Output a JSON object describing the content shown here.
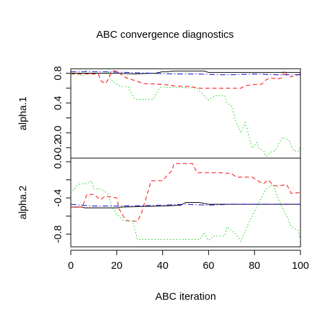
{
  "chart_data": {
    "type": "line",
    "title": "ABC convergence diagnostics",
    "xlabel": "ABC iteration",
    "xlim": [
      0,
      100
    ],
    "x_ticks": [
      0,
      20,
      40,
      60,
      80,
      100
    ],
    "x_tick_labels": [
      "0",
      "20",
      "40",
      "60",
      "80",
      "100"
    ],
    "grid": false,
    "colors": {
      "run1": "#000000",
      "run2": "#ff0000",
      "run3": "#00cd00",
      "run4": "#0000cd"
    },
    "panels": [
      {
        "ylabel": "alpha.1",
        "ylim": [
          -0.34,
          0.86
        ],
        "y_ticks": [
          -0.2,
          0.0,
          0.2,
          0.4,
          0.6,
          0.8
        ],
        "y_tick_labels": [
          "-0.2",
          "0.0",
          "0.2",
          "0.4",
          "0.6",
          "0.8"
        ],
        "y_tick_labels_shown": [
          true,
          true,
          false,
          true,
          false,
          true
        ],
        "series": [
          {
            "color": "#000000",
            "dash": "solid",
            "points": [
              [
                0,
                0.8
              ],
              [
                20,
                0.8
              ],
              [
                28,
                0.79
              ],
              [
                35,
                0.8
              ],
              [
                37,
                0.8
              ],
              [
                40,
                0.82
              ],
              [
                42,
                0.82
              ],
              [
                45,
                0.83
              ],
              [
                58,
                0.83
              ],
              [
                60,
                0.81
              ],
              [
                100,
                0.81
              ]
            ]
          },
          {
            "color": "#ff0000",
            "dash": "dashed",
            "points": [
              [
                0,
                0.79
              ],
              [
                12,
                0.79
              ],
              [
                13,
                0.7
              ],
              [
                15,
                0.66
              ],
              [
                16,
                0.7
              ],
              [
                18,
                0.83
              ],
              [
                20,
                0.83
              ],
              [
                22,
                0.78
              ],
              [
                24,
                0.74
              ],
              [
                28,
                0.7
              ],
              [
                30,
                0.68
              ],
              [
                32,
                0.66
              ],
              [
                34,
                0.66
              ],
              [
                40,
                0.65
              ],
              [
                45,
                0.63
              ],
              [
                52,
                0.62
              ],
              [
                56,
                0.6
              ],
              [
                74,
                0.6
              ],
              [
                76,
                0.63
              ],
              [
                80,
                0.65
              ],
              [
                83,
                0.65
              ],
              [
                85,
                0.71
              ],
              [
                87,
                0.74
              ],
              [
                90,
                0.72
              ],
              [
                92,
                0.74
              ],
              [
                93,
                0.84
              ],
              [
                94,
                0.78
              ],
              [
                96,
                0.75
              ],
              [
                100,
                0.79
              ]
            ]
          },
          {
            "color": "#00cd00",
            "dash": "dotted",
            "points": [
              [
                0,
                0.8
              ],
              [
                2,
                0.78
              ],
              [
                4,
                0.77
              ],
              [
                6,
                0.77
              ],
              [
                7,
                0.87
              ],
              [
                8,
                0.9
              ],
              [
                16,
                0.9
              ],
              [
                17,
                0.73
              ],
              [
                19,
                0.67
              ],
              [
                22,
                0.62
              ],
              [
                25,
                0.62
              ],
              [
                26,
                0.55
              ],
              [
                28,
                0.45
              ],
              [
                36,
                0.45
              ],
              [
                37,
                0.52
              ],
              [
                39,
                0.61
              ],
              [
                45,
                0.61
              ],
              [
                55,
                0.6
              ],
              [
                58,
                0.5
              ],
              [
                60,
                0.44
              ],
              [
                63,
                0.5
              ],
              [
                67,
                0.5
              ],
              [
                68,
                0.4
              ],
              [
                70,
                0.36
              ],
              [
                72,
                0.14
              ],
              [
                74,
                0.0
              ],
              [
                76,
                0.14
              ],
              [
                79,
                -0.21
              ],
              [
                81,
                -0.13
              ],
              [
                82,
                -0.21
              ],
              [
                84,
                -0.24
              ],
              [
                85,
                -0.32
              ],
              [
                87,
                -0.26
              ],
              [
                89,
                -0.24
              ],
              [
                92,
                -0.06
              ],
              [
                95,
                -0.1
              ],
              [
                97,
                -0.24
              ],
              [
                99,
                -0.25
              ],
              [
                100,
                -0.2
              ]
            ]
          },
          {
            "color": "#0000cd",
            "dash": "dashdot",
            "points": [
              [
                0,
                0.82
              ],
              [
                15,
                0.82
              ],
              [
                25,
                0.81
              ],
              [
                35,
                0.8
              ],
              [
                45,
                0.79
              ],
              [
                55,
                0.79
              ],
              [
                65,
                0.78
              ],
              [
                70,
                0.78
              ],
              [
                80,
                0.79
              ],
              [
                90,
                0.78
              ],
              [
                100,
                0.78
              ]
            ]
          }
        ]
      },
      {
        "ylabel": "alpha.2",
        "ylim": [
          -0.94,
          0.04
        ],
        "y_ticks": [
          -0.8,
          -0.6,
          -0.4,
          -0.2,
          0.0
        ],
        "y_tick_labels": [
          "-0.8",
          "-0.6",
          "-0.4",
          "-0.2",
          "0.0"
        ],
        "y_tick_labels_shown": [
          true,
          false,
          true,
          false,
          true
        ],
        "series": [
          {
            "color": "#000000",
            "dash": "solid",
            "points": [
              [
                0,
                -0.5
              ],
              [
                5,
                -0.5
              ],
              [
                6,
                -0.51
              ],
              [
                20,
                -0.51
              ],
              [
                22,
                -0.5
              ],
              [
                40,
                -0.49
              ],
              [
                48,
                -0.48
              ],
              [
                50,
                -0.45
              ],
              [
                56,
                -0.45
              ],
              [
                60,
                -0.47
              ],
              [
                70,
                -0.47
              ],
              [
                100,
                -0.47
              ]
            ]
          },
          {
            "color": "#ff0000",
            "dash": "dashed",
            "points": [
              [
                0,
                -0.5
              ],
              [
                5,
                -0.5
              ],
              [
                7,
                -0.36
              ],
              [
                10,
                -0.36
              ],
              [
                13,
                -0.42
              ],
              [
                15,
                -0.38
              ],
              [
                20,
                -0.4
              ],
              [
                21,
                -0.52
              ],
              [
                24,
                -0.65
              ],
              [
                29,
                -0.66
              ],
              [
                31,
                -0.55
              ],
              [
                35,
                -0.21
              ],
              [
                40,
                -0.21
              ],
              [
                42,
                -0.15
              ],
              [
                44,
                -0.1
              ],
              [
                45,
                -0.02
              ],
              [
                53,
                -0.02
              ],
              [
                55,
                -0.12
              ],
              [
                64,
                -0.12
              ],
              [
                70,
                -0.13
              ],
              [
                72,
                -0.17
              ],
              [
                79,
                -0.17
              ],
              [
                82,
                -0.22
              ],
              [
                84,
                -0.24
              ],
              [
                86,
                -0.2
              ],
              [
                88,
                -0.26
              ],
              [
                90,
                -0.27
              ],
              [
                94,
                -0.25
              ],
              [
                96,
                -0.35
              ],
              [
                100,
                -0.34
              ]
            ]
          },
          {
            "color": "#00cd00",
            "dash": "dotted",
            "points": [
              [
                0,
                -0.35
              ],
              [
                3,
                -0.25
              ],
              [
                7,
                -0.24
              ],
              [
                9,
                -0.21
              ],
              [
                10,
                -0.3
              ],
              [
                13,
                -0.3
              ],
              [
                16,
                -0.35
              ],
              [
                18,
                -0.5
              ],
              [
                20,
                -0.58
              ],
              [
                23,
                -0.65
              ],
              [
                27,
                -0.66
              ],
              [
                29,
                -0.86
              ],
              [
                45,
                -0.86
              ],
              [
                56,
                -0.86
              ],
              [
                58,
                -0.79
              ],
              [
                60,
                -0.87
              ],
              [
                62,
                -0.82
              ],
              [
                67,
                -0.82
              ],
              [
                68,
                -0.72
              ],
              [
                70,
                -0.76
              ],
              [
                72,
                -0.8
              ],
              [
                74,
                -0.88
              ],
              [
                75,
                -0.82
              ],
              [
                77,
                -0.7
              ],
              [
                80,
                -0.55
              ],
              [
                82,
                -0.45
              ],
              [
                85,
                -0.3
              ],
              [
                88,
                -0.25
              ],
              [
                91,
                -0.45
              ],
              [
                94,
                -0.6
              ],
              [
                96,
                -0.72
              ],
              [
                99,
                -0.76
              ],
              [
                100,
                -0.86
              ]
            ]
          },
          {
            "color": "#0000cd",
            "dash": "dashdot",
            "points": [
              [
                0,
                -0.47
              ],
              [
                10,
                -0.49
              ],
              [
                20,
                -0.49
              ],
              [
                40,
                -0.48
              ],
              [
                50,
                -0.47
              ],
              [
                60,
                -0.48
              ],
              [
                70,
                -0.47
              ],
              [
                80,
                -0.47
              ],
              [
                90,
                -0.47
              ],
              [
                100,
                -0.47
              ]
            ]
          }
        ]
      }
    ]
  }
}
